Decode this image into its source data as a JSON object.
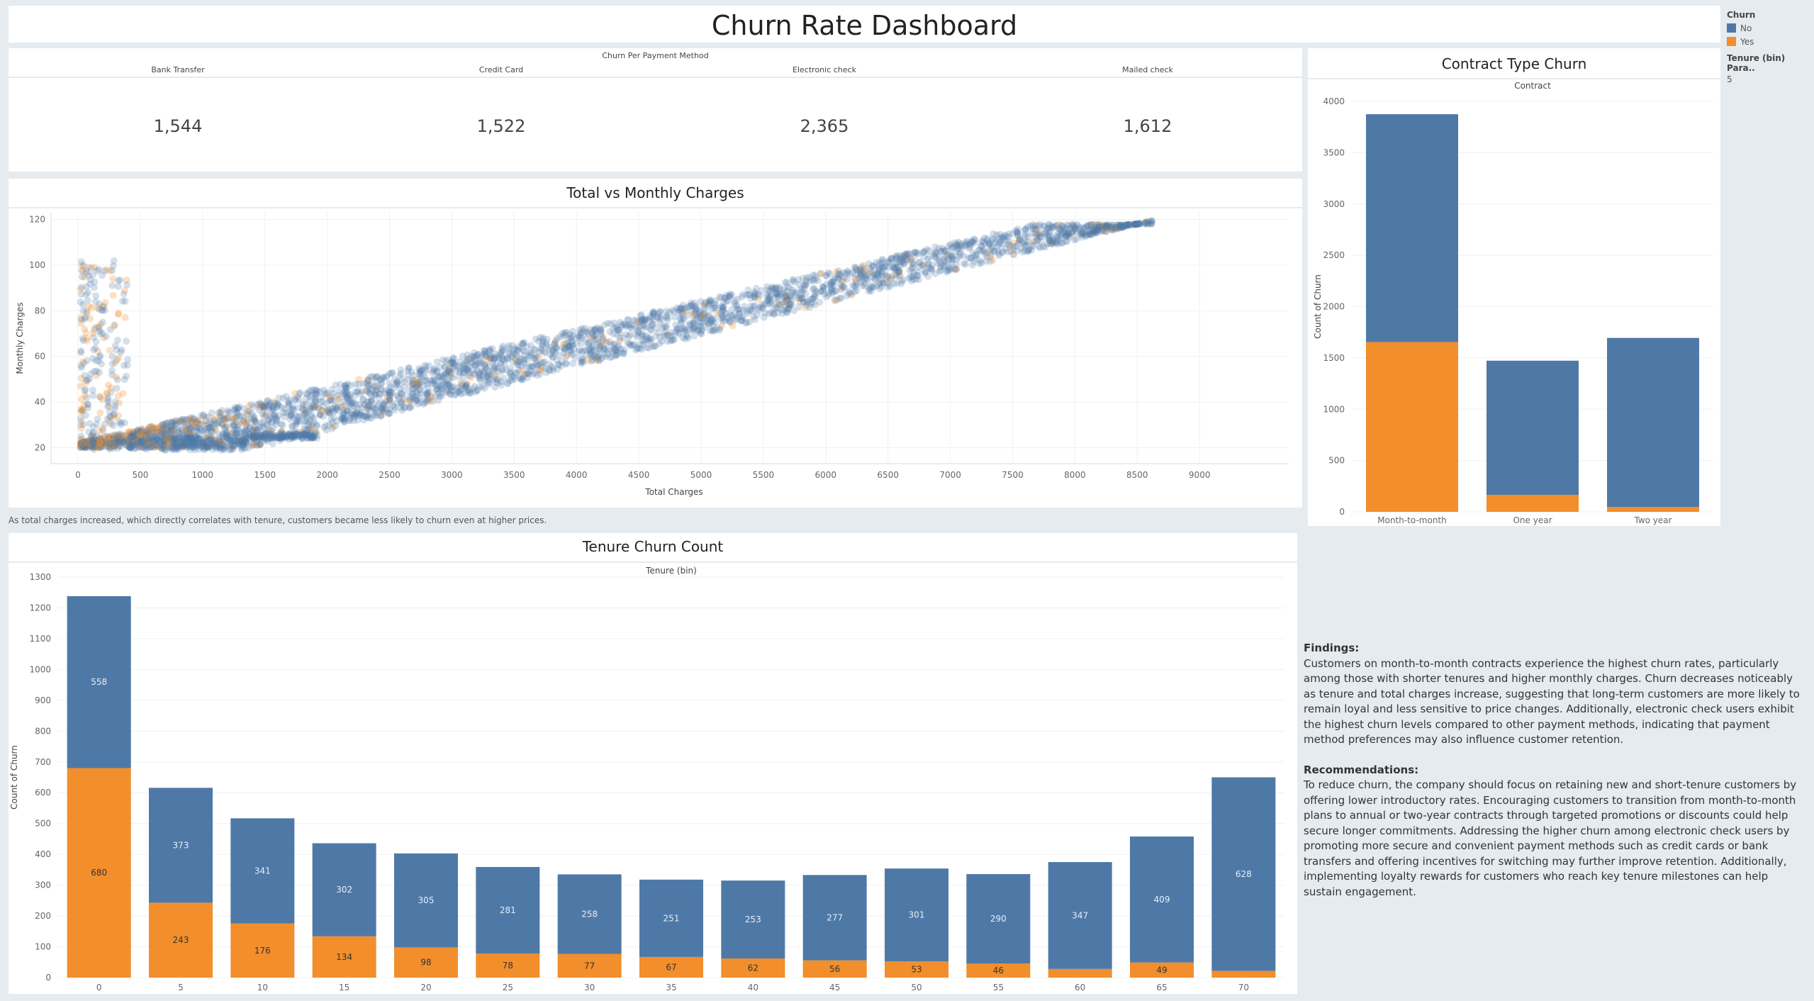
{
  "dashboard": {
    "title": "Churn Rate Dashboard"
  },
  "colors": {
    "no": "#4e79a7",
    "yes": "#f28e2b"
  },
  "legend": {
    "title": "Churn",
    "items": [
      {
        "label": "No",
        "color": "#4e79a7"
      },
      {
        "label": "Yes",
        "color": "#f28e2b"
      }
    ],
    "param_label": "Tenure (bin) Para..",
    "param_value": "5"
  },
  "payment": {
    "title": "Churn Per Payment Method",
    "methods": [
      {
        "name": "Bank Transfer",
        "value": "1,544"
      },
      {
        "name": "Credit Card",
        "value": "1,522"
      },
      {
        "name": "Electronic check",
        "value": "2,365"
      },
      {
        "name": "Mailed check",
        "value": "1,612"
      }
    ]
  },
  "scatter_note": "As total charges increased, which directly correlates with tenure, customers became less likely to churn even at higher prices.",
  "findings": {
    "heading": "Findings:",
    "text": "Customers on month-to-month contracts experience the highest churn rates, particularly among those with shorter tenures and higher monthly charges. Churn decreases noticeably as tenure and total charges increase, suggesting that long-term customers are more likely to remain loyal and less sensitive to price changes. Additionally, electronic check users exhibit the highest churn levels compared to other payment methods, indicating that payment method preferences may also influence customer retention."
  },
  "recommendations": {
    "heading": "Recommendations:",
    "text": "To reduce churn, the company should focus on retaining new and short-tenure customers by offering lower introductory rates. Encouraging customers to transition from month-to-month plans to annual or two-year contracts through targeted promotions or discounts could help secure longer commitments. Addressing the higher churn among electronic check users by promoting more secure and convenient payment methods such as credit cards or bank transfers and offering incentives for switching may further improve retention. Additionally, implementing loyalty rewards for customers who reach key tenure milestones can help sustain engagement."
  },
  "chart_data": [
    {
      "id": "scatter",
      "type": "scatter",
      "title": "Total vs Monthly Charges",
      "xlabel": "Total Charges",
      "ylabel": "Monthly Charges",
      "xlim": [
        0,
        9000
      ],
      "ylim": [
        13,
        123
      ],
      "xticks": [
        0,
        500,
        1000,
        1500,
        2000,
        2500,
        3000,
        3500,
        4000,
        4500,
        5000,
        5500,
        6000,
        6500,
        7000,
        7500,
        8000,
        8500,
        9000
      ],
      "yticks": [
        20,
        40,
        60,
        80,
        100,
        120
      ],
      "grid": true,
      "point_count": 3800,
      "series": [
        {
          "name": "No",
          "color": "#4e79a7"
        },
        {
          "name": "Yes",
          "color": "#f28e2b"
        }
      ]
    },
    {
      "id": "contract",
      "type": "bar",
      "stacked": true,
      "title": "Contract Type Churn",
      "header": "Contract",
      "ylabel": "Count of Churn",
      "ylim": [
        0,
        4000
      ],
      "yticks": [
        0,
        500,
        1000,
        1500,
        2000,
        2500,
        3000,
        3500,
        4000
      ],
      "categories": [
        "Month-to-month",
        "One year",
        "Two year"
      ],
      "series": [
        {
          "name": "Yes",
          "values": [
            1655,
            166,
            48
          ]
        },
        {
          "name": "No",
          "values": [
            2220,
            1307,
            1647
          ]
        }
      ]
    },
    {
      "id": "tenure",
      "type": "bar",
      "stacked": true,
      "title": "Tenure Churn Count",
      "header": "Tenure (bin)",
      "ylabel": "Count of Churn",
      "ylim": [
        0,
        1300
      ],
      "yticks": [
        0,
        100,
        200,
        300,
        400,
        500,
        600,
        700,
        800,
        900,
        1000,
        1100,
        1200,
        1300
      ],
      "categories": [
        "0",
        "5",
        "10",
        "15",
        "20",
        "25",
        "30",
        "35",
        "40",
        "45",
        "50",
        "55",
        "60",
        "65",
        "70"
      ],
      "series": [
        {
          "name": "Yes",
          "values": [
            680,
            243,
            176,
            134,
            98,
            78,
            77,
            67,
            62,
            56,
            53,
            46,
            28,
            49,
            22
          ],
          "labels": [
            "680",
            "243",
            "176",
            "134",
            "98",
            "78",
            "77",
            "67",
            "62",
            "56",
            "53",
            "46",
            "",
            "49",
            ""
          ]
        },
        {
          "name": "No",
          "values": [
            558,
            373,
            341,
            302,
            305,
            281,
            258,
            251,
            253,
            277,
            301,
            290,
            347,
            409,
            628
          ],
          "labels": [
            "558",
            "373",
            "341",
            "302",
            "305",
            "281",
            "258",
            "251",
            "253",
            "277",
            "301",
            "290",
            "347",
            "409",
            "628"
          ]
        }
      ]
    }
  ]
}
